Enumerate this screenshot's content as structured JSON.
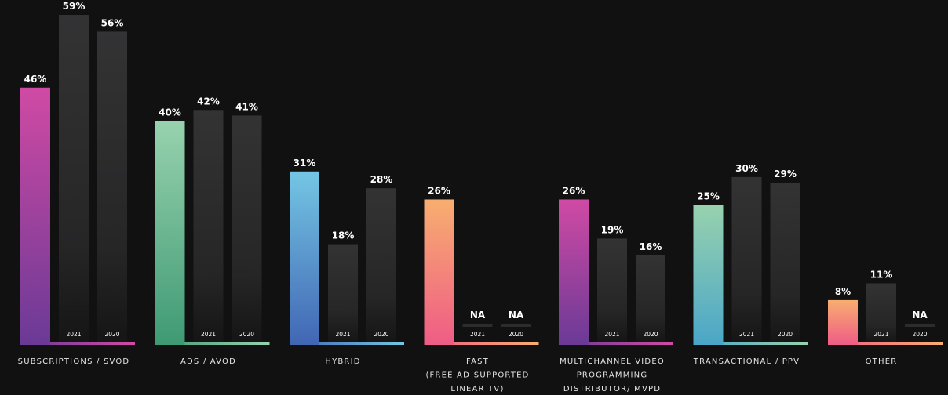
{
  "chart_data": {
    "type": "bar",
    "series": [
      {
        "values": [
          46,
          40,
          31,
          26,
          26,
          25,
          8
        ]
      },
      {
        "values": [
          59,
          42,
          18,
          null,
          19,
          30,
          11
        ],
        "label": "2021"
      },
      {
        "values": [
          56,
          41,
          28,
          null,
          16,
          29,
          null
        ],
        "label": "2020"
      }
    ],
    "value_labels": [
      [
        "46%",
        "59%",
        "56%"
      ],
      [
        "40%",
        "42%",
        "41%"
      ],
      [
        "31%",
        "18%",
        "28%"
      ],
      [
        "26%",
        "NA",
        "NA"
      ],
      [
        "26%",
        "19%",
        "16%"
      ],
      [
        "25%",
        "30%",
        "29%"
      ],
      [
        "8%",
        "11%",
        "NA"
      ]
    ],
    "categories": [
      [
        "SUBSCRIPTIONS / SVOD"
      ],
      [
        "ADS / AVOD"
      ],
      [
        "HYBRID"
      ],
      [
        "FAST",
        "(FREE AD-SUPPORTED",
        "LINEAR TV)"
      ],
      [
        "MULTICHANNEL VIDEO",
        "PROGRAMMING",
        "DISTRIBUTOR/ MVPD"
      ],
      [
        "TRANSACTIONAL / PPV"
      ],
      [
        "OTHER"
      ]
    ],
    "category_gradients": [
      [
        "#d04aa4",
        "#6a3a96"
      ],
      [
        "#98d2ae",
        "#3e9a74"
      ],
      [
        "#74c6e4",
        "#4166b4"
      ],
      [
        "#f8ae70",
        "#ef5c86"
      ],
      [
        "#d04aa4",
        "#6a3a96"
      ],
      [
        "#98d2ae",
        "#4aa6c8"
      ],
      [
        "#f8ae70",
        "#ef5c86"
      ]
    ],
    "comparison_bar_color": "#2e2e2e",
    "ylim": [
      0,
      59
    ],
    "grid": false,
    "legend": "none"
  }
}
